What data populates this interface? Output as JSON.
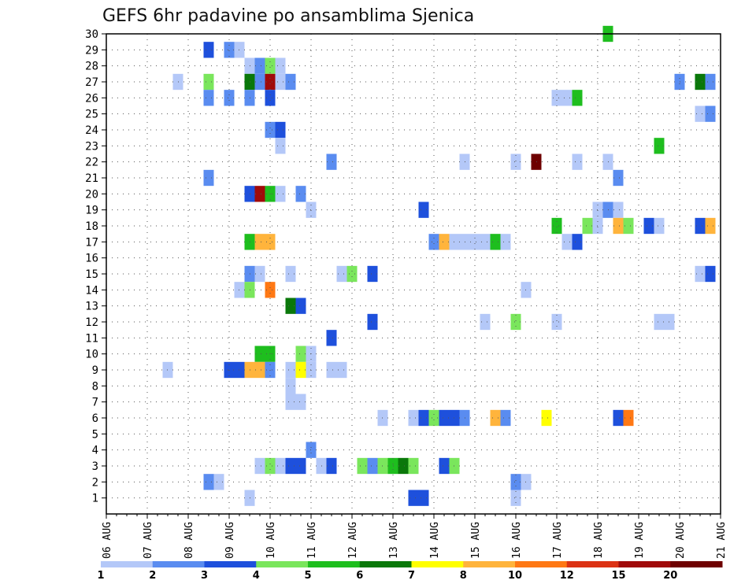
{
  "chart_data": {
    "type": "heatmap",
    "title": "GEFS 6hr padavine po ansamblima Sjenica",
    "x_tick_labels": [
      "06 AUG",
      "07 AUG",
      "08 AUG",
      "09 AUG",
      "10 AUG",
      "11 AUG",
      "12 AUG",
      "13 AUG",
      "14 AUG",
      "15 AUG",
      "16 AUG",
      "17 AUG",
      "18 AUG",
      "19 AUG",
      "20 AUG",
      "21 AUG"
    ],
    "y_tick_labels": [
      "1",
      "2",
      "3",
      "4",
      "5",
      "6",
      "7",
      "8",
      "9",
      "10",
      "11",
      "12",
      "13",
      "14",
      "15",
      "16",
      "17",
      "18",
      "19",
      "20",
      "21",
      "22",
      "23",
      "24",
      "25",
      "26",
      "27",
      "28",
      "29",
      "30"
    ],
    "ylim": [
      0,
      30
    ],
    "grid": true,
    "x_unit": "day offset from 06 AUG",
    "colorbar": {
      "labels": [
        "1",
        "2",
        "3",
        "4",
        "5",
        "6",
        "7",
        "8",
        "10",
        "12",
        "15",
        "20"
      ],
      "colors": [
        "#b4c8f8",
        "#5a8cf0",
        "#1e50dc",
        "#7ae65c",
        "#1ebe1e",
        "#0a780a",
        "#ffff00",
        "#ffb43c",
        "#ff7814",
        "#dc3214",
        "#a00a0a",
        "#6e0000"
      ]
    },
    "cells": [
      {
        "m": 30,
        "t": 12.25,
        "c": 4
      },
      {
        "m": 29,
        "t": 2.5,
        "c": 2
      },
      {
        "m": 29,
        "t": 3.0,
        "c": 1
      },
      {
        "m": 29,
        "t": 3.25,
        "c": 0
      },
      {
        "m": 28,
        "t": 3.5,
        "c": 0
      },
      {
        "m": 28,
        "t": 3.75,
        "c": 1
      },
      {
        "m": 28,
        "t": 4.0,
        "c": 3
      },
      {
        "m": 28,
        "t": 4.25,
        "c": 0
      },
      {
        "m": 27,
        "t": 1.75,
        "c": 0
      },
      {
        "m": 27,
        "t": 2.5,
        "c": 3
      },
      {
        "m": 27,
        "t": 3.5,
        "c": 5
      },
      {
        "m": 27,
        "t": 3.75,
        "c": 1
      },
      {
        "m": 27,
        "t": 4.0,
        "c": 10
      },
      {
        "m": 27,
        "t": 4.25,
        "c": 0
      },
      {
        "m": 27,
        "t": 4.5,
        "c": 1
      },
      {
        "m": 27,
        "t": 14.0,
        "c": 1
      },
      {
        "m": 27,
        "t": 14.5,
        "c": 5
      },
      {
        "m": 27,
        "t": 14.75,
        "c": 1
      },
      {
        "m": 26,
        "t": 2.5,
        "c": 1
      },
      {
        "m": 26,
        "t": 3.0,
        "c": 1
      },
      {
        "m": 26,
        "t": 3.5,
        "c": 1
      },
      {
        "m": 26,
        "t": 4.0,
        "c": 2
      },
      {
        "m": 26,
        "t": 11.0,
        "c": 0
      },
      {
        "m": 26,
        "t": 11.25,
        "c": 0
      },
      {
        "m": 26,
        "t": 11.5,
        "c": 4
      },
      {
        "m": 25,
        "t": 14.5,
        "c": 0
      },
      {
        "m": 25,
        "t": 14.75,
        "c": 1
      },
      {
        "m": 24,
        "t": 4.0,
        "c": 1
      },
      {
        "m": 24,
        "t": 4.25,
        "c": 2
      },
      {
        "m": 23,
        "t": 4.25,
        "c": 0
      },
      {
        "m": 23,
        "t": 13.5,
        "c": 4
      },
      {
        "m": 22,
        "t": 5.5,
        "c": 1
      },
      {
        "m": 22,
        "t": 8.75,
        "c": 0
      },
      {
        "m": 22,
        "t": 10.0,
        "c": 0
      },
      {
        "m": 22,
        "t": 10.5,
        "c": 11
      },
      {
        "m": 22,
        "t": 11.5,
        "c": 0
      },
      {
        "m": 22,
        "t": 12.25,
        "c": 0
      },
      {
        "m": 21,
        "t": 2.5,
        "c": 1
      },
      {
        "m": 21,
        "t": 12.5,
        "c": 1
      },
      {
        "m": 20,
        "t": 3.5,
        "c": 2
      },
      {
        "m": 20,
        "t": 3.75,
        "c": 10
      },
      {
        "m": 20,
        "t": 4.0,
        "c": 4
      },
      {
        "m": 20,
        "t": 4.25,
        "c": 0
      },
      {
        "m": 20,
        "t": 4.75,
        "c": 1
      },
      {
        "m": 19,
        "t": 5.0,
        "c": 0
      },
      {
        "m": 19,
        "t": 7.75,
        "c": 2
      },
      {
        "m": 19,
        "t": 12.0,
        "c": 0
      },
      {
        "m": 19,
        "t": 12.25,
        "c": 1
      },
      {
        "m": 19,
        "t": 12.5,
        "c": 0
      },
      {
        "m": 18,
        "t": 11.0,
        "c": 4
      },
      {
        "m": 18,
        "t": 11.75,
        "c": 3
      },
      {
        "m": 18,
        "t": 12.0,
        "c": 0
      },
      {
        "m": 18,
        "t": 12.5,
        "c": 7
      },
      {
        "m": 18,
        "t": 12.75,
        "c": 3
      },
      {
        "m": 18,
        "t": 13.25,
        "c": 2
      },
      {
        "m": 18,
        "t": 13.5,
        "c": 0
      },
      {
        "m": 18,
        "t": 14.5,
        "c": 2
      },
      {
        "m": 18,
        "t": 14.75,
        "c": 7
      },
      {
        "m": 17,
        "t": 3.5,
        "c": 4
      },
      {
        "m": 17,
        "t": 3.75,
        "c": 7
      },
      {
        "m": 17,
        "t": 4.0,
        "c": 7
      },
      {
        "m": 17,
        "t": 8.0,
        "c": 1
      },
      {
        "m": 17,
        "t": 8.25,
        "c": 7
      },
      {
        "m": 17,
        "t": 8.5,
        "c": 0
      },
      {
        "m": 17,
        "t": 8.75,
        "c": 0
      },
      {
        "m": 17,
        "t": 9.0,
        "c": 0
      },
      {
        "m": 17,
        "t": 9.25,
        "c": 0
      },
      {
        "m": 17,
        "t": 9.5,
        "c": 4
      },
      {
        "m": 17,
        "t": 9.75,
        "c": 0
      },
      {
        "m": 17,
        "t": 11.25,
        "c": 0
      },
      {
        "m": 17,
        "t": 11.5,
        "c": 2
      },
      {
        "m": 15,
        "t": 3.5,
        "c": 1
      },
      {
        "m": 15,
        "t": 3.75,
        "c": 0
      },
      {
        "m": 15,
        "t": 4.5,
        "c": 0
      },
      {
        "m": 15,
        "t": 5.75,
        "c": 0
      },
      {
        "m": 15,
        "t": 6.0,
        "c": 3
      },
      {
        "m": 15,
        "t": 6.5,
        "c": 2
      },
      {
        "m": 15,
        "t": 14.5,
        "c": 0
      },
      {
        "m": 15,
        "t": 14.75,
        "c": 2
      },
      {
        "m": 14,
        "t": 3.25,
        "c": 0
      },
      {
        "m": 14,
        "t": 3.5,
        "c": 3
      },
      {
        "m": 14,
        "t": 4.0,
        "c": 8
      },
      {
        "m": 14,
        "t": 10.25,
        "c": 0
      },
      {
        "m": 13,
        "t": 4.5,
        "c": 5
      },
      {
        "m": 13,
        "t": 4.75,
        "c": 2
      },
      {
        "m": 12,
        "t": 6.5,
        "c": 2
      },
      {
        "m": 12,
        "t": 9.25,
        "c": 0
      },
      {
        "m": 12,
        "t": 10.0,
        "c": 3
      },
      {
        "m": 12,
        "t": 11.0,
        "c": 0
      },
      {
        "m": 12,
        "t": 13.5,
        "c": 0
      },
      {
        "m": 12,
        "t": 13.75,
        "c": 0
      },
      {
        "m": 11,
        "t": 5.5,
        "c": 2
      },
      {
        "m": 10,
        "t": 3.75,
        "c": 4
      },
      {
        "m": 10,
        "t": 4.0,
        "c": 4
      },
      {
        "m": 10,
        "t": 4.75,
        "c": 3
      },
      {
        "m": 10,
        "t": 5.0,
        "c": 0
      },
      {
        "m": 9,
        "t": 1.5,
        "c": 0
      },
      {
        "m": 9,
        "t": 3.0,
        "c": 2
      },
      {
        "m": 9,
        "t": 3.25,
        "c": 2
      },
      {
        "m": 9,
        "t": 3.5,
        "c": 7
      },
      {
        "m": 9,
        "t": 3.75,
        "c": 7
      },
      {
        "m": 9,
        "t": 4.0,
        "c": 1
      },
      {
        "m": 9,
        "t": 4.5,
        "c": 0
      },
      {
        "m": 9,
        "t": 4.75,
        "c": 6
      },
      {
        "m": 9,
        "t": 5.0,
        "c": 0
      },
      {
        "m": 9,
        "t": 5.5,
        "c": 0
      },
      {
        "m": 9,
        "t": 5.75,
        "c": 0
      },
      {
        "m": 8,
        "t": 4.5,
        "c": 0
      },
      {
        "m": 7,
        "t": 4.5,
        "c": 0
      },
      {
        "m": 7,
        "t": 4.75,
        "c": 0
      },
      {
        "m": 6,
        "t": 6.75,
        "c": 0
      },
      {
        "m": 6,
        "t": 7.5,
        "c": 0
      },
      {
        "m": 6,
        "t": 7.75,
        "c": 2
      },
      {
        "m": 6,
        "t": 8.0,
        "c": 3
      },
      {
        "m": 6,
        "t": 8.25,
        "c": 2
      },
      {
        "m": 6,
        "t": 8.5,
        "c": 2
      },
      {
        "m": 6,
        "t": 8.75,
        "c": 1
      },
      {
        "m": 6,
        "t": 9.5,
        "c": 7
      },
      {
        "m": 6,
        "t": 9.75,
        "c": 1
      },
      {
        "m": 6,
        "t": 10.75,
        "c": 6
      },
      {
        "m": 6,
        "t": 12.5,
        "c": 2
      },
      {
        "m": 6,
        "t": 12.75,
        "c": 8
      },
      {
        "m": 4,
        "t": 5.0,
        "c": 1
      },
      {
        "m": 3,
        "t": 3.75,
        "c": 0
      },
      {
        "m": 3,
        "t": 4.0,
        "c": 3
      },
      {
        "m": 3,
        "t": 4.25,
        "c": 0
      },
      {
        "m": 3,
        "t": 4.5,
        "c": 2
      },
      {
        "m": 3,
        "t": 4.75,
        "c": 2
      },
      {
        "m": 3,
        "t": 5.25,
        "c": 0
      },
      {
        "m": 3,
        "t": 5.5,
        "c": 2
      },
      {
        "m": 3,
        "t": 6.25,
        "c": 3
      },
      {
        "m": 3,
        "t": 6.5,
        "c": 1
      },
      {
        "m": 3,
        "t": 6.75,
        "c": 3
      },
      {
        "m": 3,
        "t": 7.0,
        "c": 4
      },
      {
        "m": 3,
        "t": 7.25,
        "c": 5
      },
      {
        "m": 3,
        "t": 7.5,
        "c": 3
      },
      {
        "m": 3,
        "t": 8.25,
        "c": 2
      },
      {
        "m": 3,
        "t": 8.5,
        "c": 3
      },
      {
        "m": 2,
        "t": 2.5,
        "c": 1
      },
      {
        "m": 2,
        "t": 2.75,
        "c": 0
      },
      {
        "m": 2,
        "t": 10.0,
        "c": 1
      },
      {
        "m": 2,
        "t": 10.25,
        "c": 0
      },
      {
        "m": 1,
        "t": 3.5,
        "c": 0
      },
      {
        "m": 1,
        "t": 7.5,
        "c": 2
      },
      {
        "m": 1,
        "t": 7.75,
        "c": 2
      },
      {
        "m": 1,
        "t": 10.0,
        "c": 0
      }
    ]
  }
}
